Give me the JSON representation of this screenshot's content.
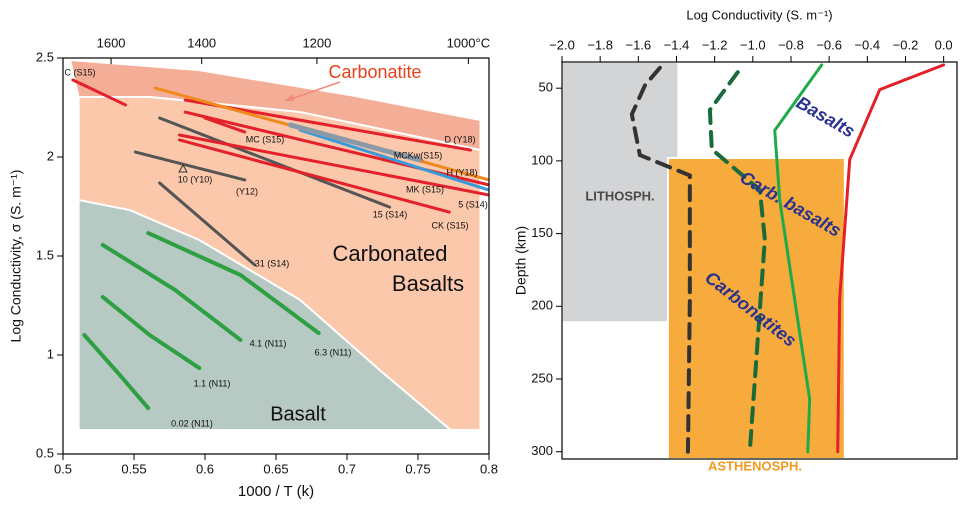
{
  "chart_data": [
    {
      "type": "line",
      "xlabel": "1000 / T (k)",
      "ylabel": "Log Conductivity, σ (S. m⁻¹)",
      "xlim": [
        0.5,
        0.8
      ],
      "ylim": [
        0.5,
        2.5
      ],
      "xticks": [
        0.5,
        0.55,
        0.6,
        0.65,
        0.7,
        0.75,
        0.8
      ],
      "yticks": [
        0.5,
        1,
        1.5,
        2,
        2.5
      ],
      "x2ticks": [
        1600,
        1400,
        1200,
        {
          "value": 1000,
          "label": "1000°C"
        }
      ],
      "areas": [
        {
          "color": "#f4ae98",
          "x": [
            0.505,
            0.596,
            0.702,
            0.794,
            0.794,
            0.667,
            0.561,
            0.511
          ],
          "y": [
            2.49,
            2.439,
            2.313,
            2.187,
            2.035,
            2.227,
            2.303,
            2.303
          ]
        },
        {
          "color": "#fbc8ac",
          "x": [
            0.511,
            0.561,
            0.667,
            0.794,
            0.794,
            0.511
          ],
          "y": [
            2.303,
            2.303,
            2.227,
            2.035,
            0.621,
            0.621
          ]
        },
        {
          "color": "#b6c9c3",
          "x": [
            0.511,
            0.547,
            0.596,
            0.667,
            0.723,
            0.773,
            0.511
          ],
          "y": [
            1.783,
            1.732,
            1.581,
            1.278,
            0.924,
            0.621,
            0.621
          ]
        }
      ],
      "series": [
        {
          "name": "C (S15)",
          "color": "#e4202a",
          "x": [
            0.507,
            0.544
          ],
          "values": [
            2.389,
            2.263
          ]
        },
        {
          "name": "10 (Y10)",
          "color": "#555555",
          "x": [
            0.551,
            0.628
          ],
          "values": [
            2.025,
            1.884
          ]
        },
        {
          "name": "31 (S14)",
          "color": "#555555",
          "x": [
            0.568,
            0.635
          ],
          "values": [
            1.869,
            1.455
          ]
        },
        {
          "name": "15 (S14)",
          "color": "#555555",
          "x": [
            0.568,
            0.73
          ],
          "values": [
            2.197,
            1.747
          ]
        },
        {
          "name": "CK (S15)",
          "color": "#e4202a",
          "x": [
            0.582,
            0.772
          ],
          "values": [
            2.086,
            1.722
          ]
        },
        {
          "name": "5 (S14)",
          "color": "#e4202a",
          "x": [
            0.582,
            0.8
          ],
          "values": [
            2.111,
            1.808
          ]
        },
        {
          "name": "MK (S15)",
          "color": "#e4202a",
          "x": [
            0.586,
            0.8
          ],
          "values": [
            2.227,
            1.859
          ]
        },
        {
          "name": "D (Y18)",
          "color": "#e4202a",
          "x": [
            0.586,
            0.787
          ],
          "values": [
            2.288,
            2.035
          ]
        },
        {
          "name": "MC (S15)",
          "color": "#e4202a",
          "x": [
            0.6,
            0.628
          ],
          "values": [
            2.197,
            2.126
          ]
        },
        {
          "color": "#f08a1c",
          "x": [
            0.565,
            0.8
          ],
          "values": [
            2.348,
            1.884
          ]
        },
        {
          "name": "H (Y18)",
          "color": "#3a9ad9",
          "x": [
            0.667,
            0.8
          ],
          "values": [
            2.136,
            1.833
          ]
        },
        {
          "name": "MCKw(S15)",
          "color": "#8a9aa8",
          "x": [
            0.66,
            0.751
          ],
          "values": [
            2.162,
            1.985
          ]
        },
        {
          "name": "0.02 (N11)",
          "color": "#2ea043",
          "x": [
            0.515,
            0.54,
            0.56
          ],
          "values": [
            1.101,
            0.899,
            0.732
          ]
        },
        {
          "name": "1.1 (N11)",
          "color": "#2ea043",
          "x": [
            0.528,
            0.561,
            0.596
          ],
          "values": [
            1.293,
            1.101,
            0.934
          ]
        },
        {
          "name": "4.1 (N11)",
          "color": "#2ea043",
          "x": [
            0.528,
            0.579,
            0.625
          ],
          "values": [
            1.556,
            1.328,
            1.076
          ]
        },
        {
          "name": "6.3 (N11)",
          "color": "#2ea043",
          "x": [
            0.56,
            0.625,
            0.68
          ],
          "values": [
            1.616,
            1.404,
            1.111
          ]
        }
      ],
      "annotations": [
        "Carbonatite",
        "Carbonated",
        "Basalts",
        "Basalt",
        "(Y12)"
      ]
    },
    {
      "type": "line",
      "xlabel": "Log Conductivity (S. m⁻¹)",
      "ylabel": "Depth (km)",
      "xlim": [
        -2.0,
        0.07
      ],
      "ylim": [
        305,
        32
      ],
      "xticks": [
        {
          "value": -2.0,
          "label": "−2.0"
        },
        {
          "value": -1.8,
          "label": "−1.8"
        },
        {
          "value": -1.6,
          "label": "−1.6"
        },
        {
          "value": -1.4,
          "label": "−1.4"
        },
        {
          "value": -1.2,
          "label": "−1.2"
        },
        {
          "value": -1.0,
          "label": "−1.0"
        },
        {
          "value": -0.8,
          "label": "−0.8"
        },
        {
          "value": -0.6,
          "label": "−0.6"
        },
        {
          "value": -0.4,
          "label": "−0.4"
        },
        {
          "value": -0.2,
          "label": "−0.2"
        },
        {
          "value": 0.0,
          "label": "0.0"
        }
      ],
      "yticks": [
        50,
        100,
        150,
        200,
        250,
        300
      ],
      "areas": [
        {
          "color": "#d3d4d6",
          "x": [
            -2.0,
            -1.39,
            -1.39,
            -2.0
          ],
          "y": [
            32,
            32,
            211,
            211
          ]
        },
        {
          "color": "#f6ab3c",
          "x": [
            -1.445,
            -0.518,
            -0.518,
            -1.445
          ],
          "y": [
            98,
            98,
            305,
            305
          ]
        }
      ],
      "series": [
        {
          "color": "#333333",
          "dash": true,
          "x": [
            -1.487,
            -1.565,
            -1.634,
            -1.592,
            -1.33,
            -1.33,
            -1.34
          ],
          "values": [
            36,
            48,
            68,
            96,
            110,
            195,
            300
          ]
        },
        {
          "color": "#1b6b3a",
          "dash": true,
          "x": [
            -1.079,
            -1.225,
            -1.215,
            -0.963,
            -0.937,
            -1.016
          ],
          "values": [
            39,
            65,
            92,
            120,
            154,
            300
          ]
        },
        {
          "color": "#1faa4a",
          "x": [
            -0.639,
            -0.885,
            -0.859,
            -0.702,
            -0.712
          ],
          "values": [
            34,
            79,
            127,
            264,
            300
          ]
        },
        {
          "color": "#e4202a",
          "x": [
            0,
            -0.335,
            -0.492,
            -0.545,
            -0.555
          ],
          "values": [
            34,
            51,
            99,
            195,
            300
          ]
        }
      ],
      "annotations": [
        "Basalts",
        "Carb. basalts",
        "Carbonatites",
        "LITHOSPH.",
        "ASTHENOSPH."
      ]
    }
  ]
}
